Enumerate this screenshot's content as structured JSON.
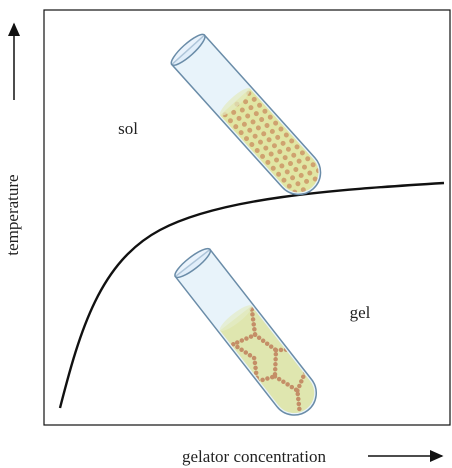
{
  "labels": {
    "sol": "sol",
    "gel": "gel"
  },
  "axes": {
    "y": "temperature",
    "x": "gelator concentration"
  }
}
